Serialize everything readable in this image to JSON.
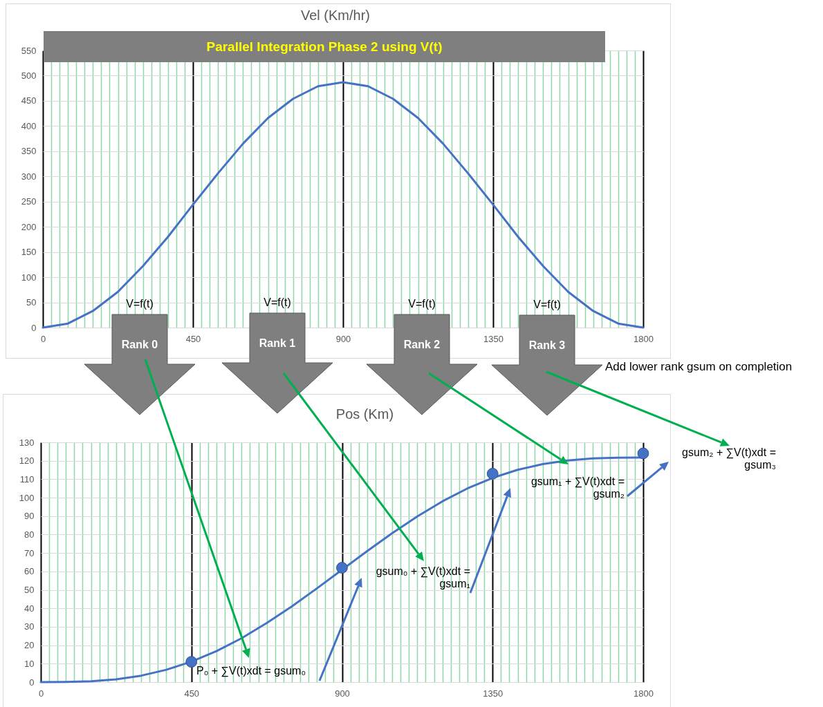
{
  "chart_data": [
    {
      "type": "line",
      "title": "Vel (Km/hr)",
      "xlim": [
        0,
        1800
      ],
      "ylim": [
        0,
        550
      ],
      "xticks": [
        0,
        {
          "value": 25,
          "label": null
        },
        {
          "value": 50,
          "label": null
        },
        {
          "value": 75,
          "label": null
        },
        {
          "value": 100,
          "label": null
        },
        {
          "value": 125,
          "label": null
        },
        {
          "value": 150,
          "label": null
        },
        {
          "value": 175,
          "label": null
        },
        {
          "value": 200,
          "label": null
        },
        {
          "value": 225,
          "label": null
        },
        {
          "value": 250,
          "label": null
        },
        {
          "value": 275,
          "label": null
        },
        {
          "value": 300,
          "label": null
        },
        {
          "value": 325,
          "label": null
        },
        {
          "value": 350,
          "label": null
        },
        {
          "value": 375,
          "label": null
        },
        {
          "value": 400,
          "label": null
        },
        {
          "value": 425,
          "label": null
        },
        450,
        {
          "value": 475,
          "label": null
        },
        {
          "value": 500,
          "label": null
        },
        {
          "value": 525,
          "label": null
        },
        {
          "value": 550,
          "label": null
        },
        {
          "value": 575,
          "label": null
        },
        {
          "value": 600,
          "label": null
        },
        {
          "value": 625,
          "label": null
        },
        {
          "value": 650,
          "label": null
        },
        {
          "value": 675,
          "label": null
        },
        {
          "value": 700,
          "label": null
        },
        {
          "value": 725,
          "label": null
        },
        {
          "value": 750,
          "label": null
        },
        {
          "value": 775,
          "label": null
        },
        {
          "value": 800,
          "label": null
        },
        {
          "value": 825,
          "label": null
        },
        {
          "value": 850,
          "label": null
        },
        {
          "value": 875,
          "label": null
        },
        900,
        {
          "value": 925,
          "label": null
        },
        {
          "value": 950,
          "label": null
        },
        {
          "value": 975,
          "label": null
        },
        {
          "value": 1000,
          "label": null
        },
        {
          "value": 1025,
          "label": null
        },
        {
          "value": 1050,
          "label": null
        },
        {
          "value": 1075,
          "label": null
        },
        {
          "value": 1100,
          "label": null
        },
        {
          "value": 1125,
          "label": null
        },
        {
          "value": 1150,
          "label": null
        },
        {
          "value": 1175,
          "label": null
        },
        {
          "value": 1200,
          "label": null
        },
        {
          "value": 1225,
          "label": null
        },
        {
          "value": 1250,
          "label": null
        },
        {
          "value": 1275,
          "label": null
        },
        {
          "value": 1300,
          "label": null
        },
        {
          "value": 1325,
          "label": null
        },
        1350,
        {
          "value": 1375,
          "label": null
        },
        {
          "value": 1400,
          "label": null
        },
        {
          "value": 1425,
          "label": null
        },
        {
          "value": 1450,
          "label": null
        },
        {
          "value": 1475,
          "label": null
        },
        {
          "value": 1500,
          "label": null
        },
        {
          "value": 1525,
          "label": null
        },
        {
          "value": 1550,
          "label": null
        },
        {
          "value": 1575,
          "label": null
        },
        {
          "value": 1600,
          "label": null
        },
        {
          "value": 1625,
          "label": null
        },
        {
          "value": 1650,
          "label": null
        },
        {
          "value": 1675,
          "label": null
        },
        {
          "value": 1700,
          "label": null
        },
        {
          "value": 1725,
          "label": null
        },
        {
          "value": 1750,
          "label": null
        },
        {
          "value": 1775,
          "label": null
        },
        1800
      ],
      "yticks": [
        0,
        50,
        100,
        150,
        200,
        250,
        300,
        350,
        400,
        450,
        500,
        550
      ],
      "grid": true,
      "series": [
        {
          "color": "#4472c4",
          "marker": "none",
          "x": [
            0,
            75,
            150,
            225,
            300,
            375,
            450,
            525,
            600,
            675,
            750,
            825,
            900,
            975,
            1050,
            1125,
            1200,
            1275,
            1350,
            1425,
            1500,
            1575,
            1650,
            1725,
            1800
          ],
          "values": [
            0,
            8,
            33,
            71,
            122,
            180,
            244,
            306,
            365,
            416,
            454,
            479,
            487,
            479,
            454,
            416,
            365,
            306,
            244,
            180,
            122,
            71,
            33,
            8,
            0
          ]
        }
      ],
      "annotations": [
        "Parallel Integration Phase 2 using V(t)",
        "V=f(t)",
        "V=f(t)",
        "V=f(t)",
        "V=f(t)",
        "Rank 0",
        "Rank 1",
        "Rank 2",
        "Rank 3",
        "Add lower rank gsum on completion"
      ]
    },
    {
      "type": "line",
      "title": "Pos (Km)",
      "xlim": [
        0,
        1800
      ],
      "ylim": [
        0,
        130
      ],
      "xticks": [
        0,
        {
          "value": 25,
          "label": null
        },
        {
          "value": 50,
          "label": null
        },
        {
          "value": 75,
          "label": null
        },
        {
          "value": 100,
          "label": null
        },
        {
          "value": 125,
          "label": null
        },
        {
          "value": 150,
          "label": null
        },
        {
          "value": 175,
          "label": null
        },
        {
          "value": 200,
          "label": null
        },
        {
          "value": 225,
          "label": null
        },
        {
          "value": 250,
          "label": null
        },
        {
          "value": 275,
          "label": null
        },
        {
          "value": 300,
          "label": null
        },
        {
          "value": 325,
          "label": null
        },
        {
          "value": 350,
          "label": null
        },
        {
          "value": 375,
          "label": null
        },
        {
          "value": 400,
          "label": null
        },
        {
          "value": 425,
          "label": null
        },
        450,
        {
          "value": 475,
          "label": null
        },
        {
          "value": 500,
          "label": null
        },
        {
          "value": 525,
          "label": null
        },
        {
          "value": 550,
          "label": null
        },
        {
          "value": 575,
          "label": null
        },
        {
          "value": 600,
          "label": null
        },
        {
          "value": 625,
          "label": null
        },
        {
          "value": 650,
          "label": null
        },
        {
          "value": 675,
          "label": null
        },
        {
          "value": 700,
          "label": null
        },
        {
          "value": 725,
          "label": null
        },
        {
          "value": 750,
          "label": null
        },
        {
          "value": 775,
          "label": null
        },
        {
          "value": 800,
          "label": null
        },
        {
          "value": 825,
          "label": null
        },
        {
          "value": 850,
          "label": null
        },
        {
          "value": 875,
          "label": null
        },
        900,
        {
          "value": 925,
          "label": null
        },
        {
          "value": 950,
          "label": null
        },
        {
          "value": 975,
          "label": null
        },
        {
          "value": 1000,
          "label": null
        },
        {
          "value": 1025,
          "label": null
        },
        {
          "value": 1050,
          "label": null
        },
        {
          "value": 1075,
          "label": null
        },
        {
          "value": 1100,
          "label": null
        },
        {
          "value": 1125,
          "label": null
        },
        {
          "value": 1150,
          "label": null
        },
        {
          "value": 1175,
          "label": null
        },
        {
          "value": 1200,
          "label": null
        },
        {
          "value": 1225,
          "label": null
        },
        {
          "value": 1250,
          "label": null
        },
        {
          "value": 1275,
          "label": null
        },
        {
          "value": 1300,
          "label": null
        },
        {
          "value": 1325,
          "label": null
        },
        1350,
        {
          "value": 1375,
          "label": null
        },
        {
          "value": 1400,
          "label": null
        },
        {
          "value": 1425,
          "label": null
        },
        {
          "value": 1450,
          "label": null
        },
        {
          "value": 1475,
          "label": null
        },
        {
          "value": 1500,
          "label": null
        },
        {
          "value": 1525,
          "label": null
        },
        {
          "value": 1550,
          "label": null
        },
        {
          "value": 1575,
          "label": null
        },
        {
          "value": 1600,
          "label": null
        },
        {
          "value": 1625,
          "label": null
        },
        {
          "value": 1650,
          "label": null
        },
        {
          "value": 1675,
          "label": null
        },
        {
          "value": 1700,
          "label": null
        },
        {
          "value": 1725,
          "label": null
        },
        {
          "value": 1750,
          "label": null
        },
        {
          "value": 1775,
          "label": null
        },
        1800
      ],
      "yticks": [
        0,
        10,
        20,
        30,
        40,
        50,
        60,
        70,
        80,
        90,
        100,
        110,
        120,
        130
      ],
      "grid": true,
      "series": [
        {
          "color": "#4472c4",
          "marker": "none",
          "x": [
            0,
            75,
            150,
            225,
            300,
            375,
            450,
            525,
            600,
            675,
            750,
            825,
            900,
            975,
            1050,
            1125,
            1200,
            1275,
            1350,
            1425,
            1500,
            1575,
            1650,
            1725,
            1800
          ],
          "values": [
            0,
            0.1,
            0.5,
            1.5,
            3.5,
            6.7,
            11.1,
            16.8,
            23.8,
            32,
            41,
            50.8,
            60.9,
            71,
            80.7,
            89.8,
            98,
            105,
            110.7,
            115.1,
            118.2,
            120.2,
            121.3,
            121.7,
            121.8
          ]
        },
        {
          "type": "scatter",
          "color": "#4472c4",
          "marker": "circle",
          "x": [
            450,
            900,
            1350,
            1800
          ],
          "values": [
            11,
            62,
            113,
            124
          ]
        }
      ],
      "annotations": [
        "P₀ + ∑V(t)xdt = gsum₀",
        "gsum₀ + ∑V(t)xdt = gsum₁",
        "gsum₁ + ∑V(t)xdt = gsum₂",
        "gsum₂ + ∑V(t)xdt = gsum₃"
      ]
    }
  ]
}
